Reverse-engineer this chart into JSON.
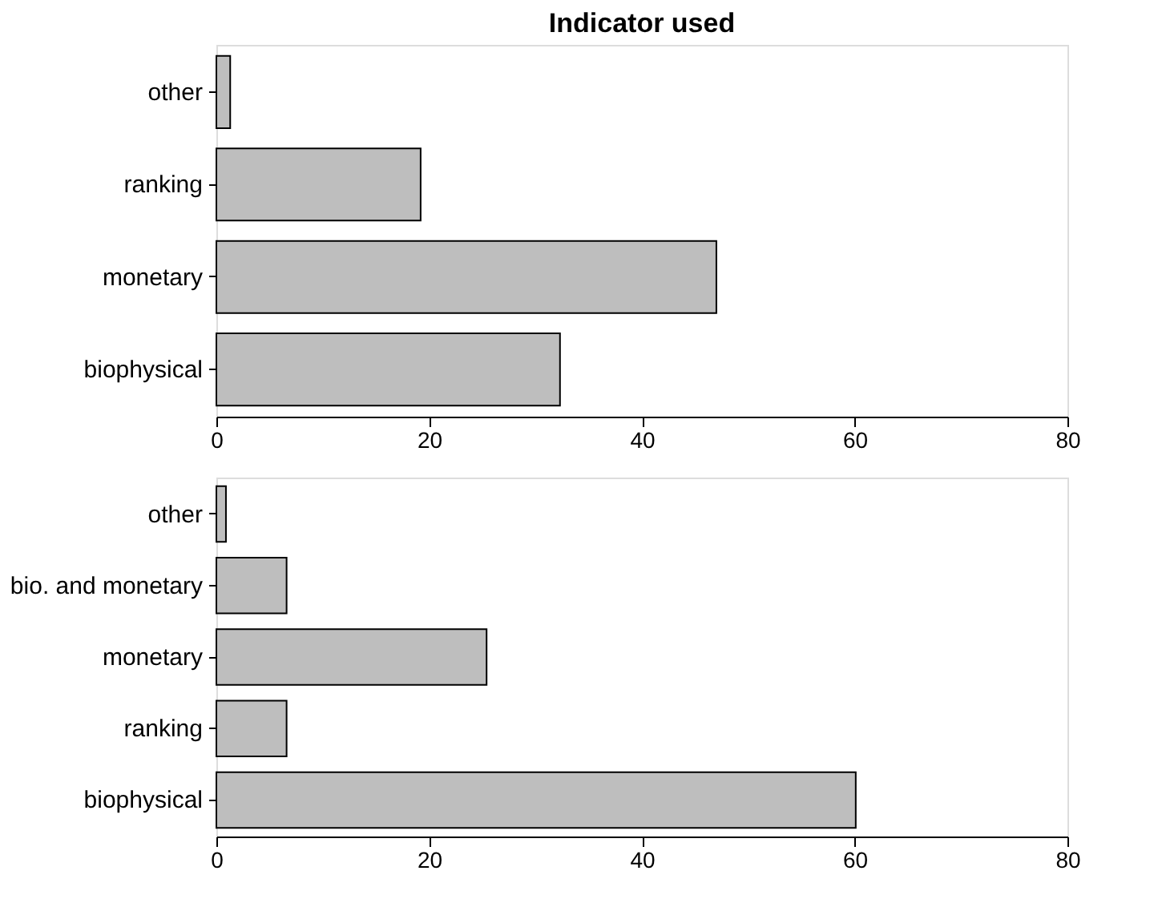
{
  "chart_data": [
    {
      "type": "bar",
      "orientation": "horizontal",
      "title": "Indicator used",
      "categories": [
        "other",
        "ranking",
        "monetary",
        "biophysical"
      ],
      "values": [
        1.3,
        19.2,
        47.0,
        32.3
      ],
      "color": "#bebebe",
      "xlim": [
        0,
        80
      ],
      "xticks": [
        0,
        20,
        40,
        60,
        80
      ],
      "grid": false
    },
    {
      "type": "bar",
      "orientation": "horizontal",
      "categories": [
        "other",
        "bio. and monetary",
        "monetary",
        "ranking",
        "biophysical"
      ],
      "values": [
        0.9,
        6.6,
        25.4,
        6.6,
        60.1
      ],
      "color": "#bebebe",
      "xlim": [
        0,
        80
      ],
      "xticks": [
        0,
        20,
        40,
        60,
        80
      ],
      "grid": false
    }
  ]
}
